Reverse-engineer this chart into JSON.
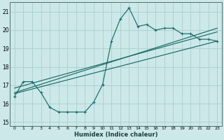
{
  "title": "",
  "xlabel": "Humidex (Indice chaleur)",
  "bg_color": "#cce8e8",
  "grid_color": "#aacfcf",
  "line_color": "#1a6b6b",
  "xlim": [
    -0.5,
    23.5
  ],
  "ylim": [
    14.8,
    21.5
  ],
  "xticks": [
    0,
    1,
    2,
    3,
    4,
    5,
    6,
    7,
    8,
    9,
    10,
    11,
    12,
    13,
    14,
    15,
    16,
    17,
    18,
    19,
    20,
    21,
    22,
    23
  ],
  "yticks": [
    15,
    16,
    17,
    18,
    19,
    20,
    21
  ],
  "line1_x": [
    0,
    1,
    2,
    3,
    4,
    5,
    6,
    7,
    8,
    9,
    10,
    11,
    12,
    13,
    14,
    15,
    16,
    17,
    18,
    19,
    20,
    21,
    22,
    23
  ],
  "line1_y": [
    16.4,
    17.2,
    17.2,
    16.6,
    15.8,
    15.55,
    15.55,
    15.55,
    15.55,
    16.1,
    17.05,
    19.4,
    20.6,
    21.2,
    20.2,
    20.3,
    20.0,
    20.1,
    20.1,
    19.8,
    19.8,
    19.5,
    19.5,
    19.4
  ],
  "line2_x": [
    0,
    23
  ],
  "line2_y": [
    16.85,
    19.9
  ],
  "line3_x": [
    0,
    23
  ],
  "line3_y": [
    16.55,
    19.4
  ],
  "line4_x": [
    0,
    23
  ],
  "line4_y": [
    16.6,
    20.1
  ]
}
